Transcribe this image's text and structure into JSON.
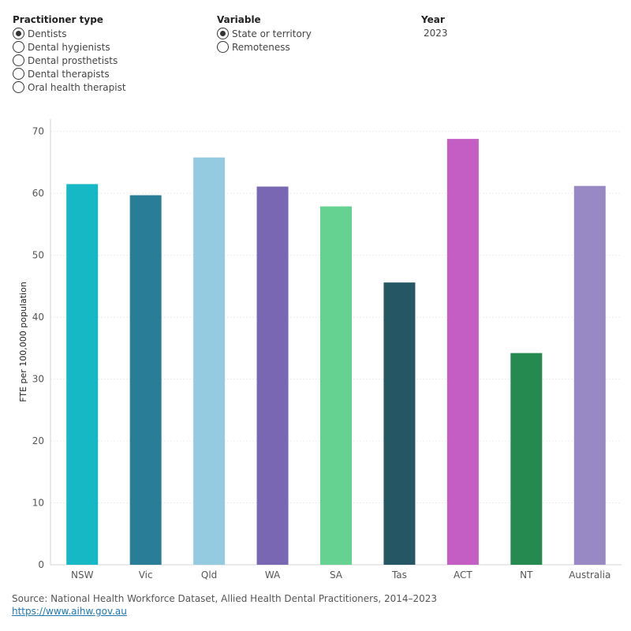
{
  "filters": {
    "practitioner": {
      "title": "Practitioner type",
      "options": [
        "Dentists",
        "Dental hygienists",
        "Dental prosthetists",
        "Dental therapists",
        "Oral health therapist"
      ],
      "selected_index": 0
    },
    "variable": {
      "title": "Variable",
      "options": [
        "State or territory",
        "Remoteness"
      ],
      "selected_index": 0
    },
    "year": {
      "title": "Year",
      "value": "2023"
    }
  },
  "chart_data": {
    "type": "bar",
    "categories": [
      "NSW",
      "Vic",
      "Qld",
      "WA",
      "SA",
      "Tas",
      "ACT",
      "NT",
      "Australia"
    ],
    "values": [
      61.5,
      59.7,
      65.8,
      61.1,
      57.9,
      45.6,
      68.8,
      34.2,
      61.2
    ],
    "colors": [
      "#17b8c6",
      "#2a7d96",
      "#95cbe0",
      "#7a67b3",
      "#65d292",
      "#255664",
      "#c45ec4",
      "#248a4f",
      "#9888c4"
    ],
    "title": "",
    "xlabel": "",
    "ylabel": "FTE per 100,000 population",
    "ylim": [
      0,
      72
    ],
    "yticks": [
      0,
      10,
      20,
      30,
      40,
      50,
      60,
      70
    ],
    "grid": true
  },
  "footer": {
    "source": "Source: National Health Workforce Dataset, Allied Health Dental Practitioners, 2014–2023",
    "link": "https://www.aihw.gov.au"
  }
}
